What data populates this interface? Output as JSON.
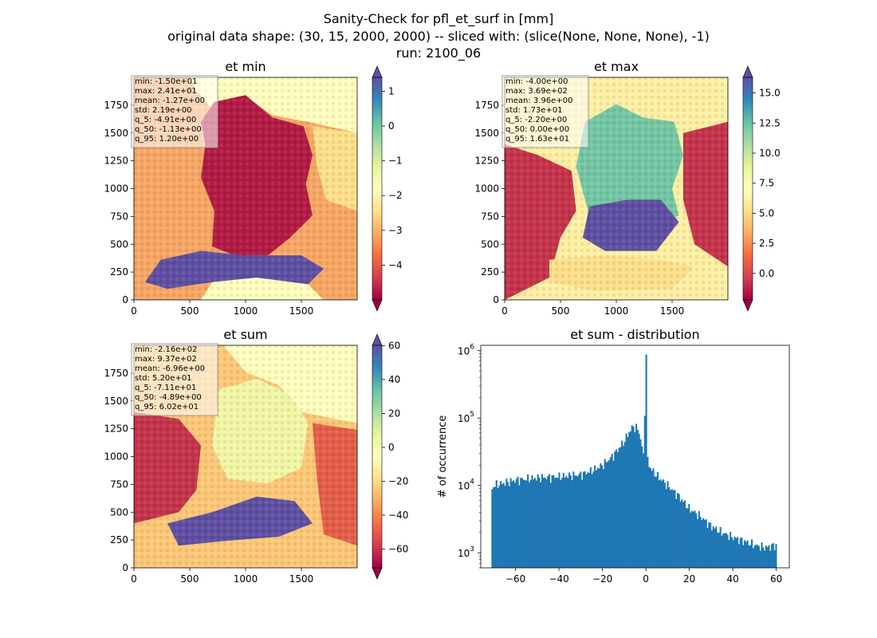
{
  "suptitle": {
    "line1": "Sanity-Check for pfl_et_surf in [mm]",
    "line2": "original data shape: (30, 15, 2000, 2000) -- sliced with: (slice(None, None, None), -1)",
    "line3": "run: 2100_06"
  },
  "colors": {
    "spectral": [
      "#9e0142",
      "#d53e4f",
      "#f46d43",
      "#fdae61",
      "#fee08b",
      "#ffffbf",
      "#e6f598",
      "#abdda4",
      "#66c2a5",
      "#3288bd",
      "#5e4fa2"
    ],
    "hist_bar": "#1f77b4"
  },
  "chart_data": [
    {
      "type": "heatmap",
      "title": "et min",
      "xlim": [
        0,
        2000
      ],
      "ylim": [
        0,
        2000
      ],
      "xticks": [
        "0",
        "500",
        "1000",
        "1500"
      ],
      "yticks": [
        "0",
        "250",
        "500",
        "750",
        "1000",
        "1250",
        "1500",
        "1750"
      ],
      "colorbar": {
        "range": [
          -5,
          1.4
        ],
        "ticks": [
          "1",
          "0",
          "−1",
          "−2",
          "−3",
          "−4"
        ],
        "tick_values": [
          1,
          0,
          -1,
          -2,
          -3,
          -4
        ],
        "extend": "both"
      },
      "stats": [
        "min: -1.50e+01",
        "max: 2.41e+01",
        "mean: -1.27e+00",
        "std: 2.19e+00",
        "q_5: -4.91e+00",
        "q_50: -1.13e+00",
        "q_95: 1.20e+00"
      ]
    },
    {
      "type": "heatmap",
      "title": "et max",
      "xlim": [
        0,
        2000
      ],
      "ylim": [
        0,
        2000
      ],
      "xticks": [
        "0",
        "500",
        "1000",
        "1500"
      ],
      "yticks": [
        "0",
        "250",
        "500",
        "750",
        "1000",
        "1250",
        "1500",
        "1750"
      ],
      "colorbar": {
        "range": [
          -2.2,
          16.3
        ],
        "ticks": [
          "15.0",
          "12.5",
          "10.0",
          "7.5",
          "5.0",
          "2.5",
          "0.0"
        ],
        "tick_values": [
          15,
          12.5,
          10,
          7.5,
          5,
          2.5,
          0
        ],
        "extend": "both"
      },
      "stats": [
        "min: -4.00e+00",
        "max: 3.69e+02",
        "mean: 3.96e+00",
        "std: 1.73e+01",
        "q_5: -2.20e+00",
        "q_50: 0.00e+00",
        "q_95: 1.63e+01"
      ]
    },
    {
      "type": "heatmap",
      "title": "et sum",
      "xlim": [
        0,
        2000
      ],
      "ylim": [
        0,
        2000
      ],
      "xticks": [
        "0",
        "500",
        "1000",
        "1500"
      ],
      "yticks": [
        "0",
        "250",
        "500",
        "750",
        "1000",
        "1250",
        "1500",
        "1750"
      ],
      "colorbar": {
        "range": [
          -71.1,
          60.2
        ],
        "ticks": [
          "60",
          "40",
          "20",
          "0",
          "−20",
          "−40",
          "−60"
        ],
        "tick_values": [
          60,
          40,
          20,
          0,
          -20,
          -40,
          -60
        ],
        "extend": "both"
      },
      "stats": [
        "min: -2.16e+02",
        "max: 9.37e+02",
        "mean: -6.96e+00",
        "std: 5.20e+01",
        "q_5: -7.11e+01",
        "q_50: -4.89e+00",
        "q_95: 6.02e+01"
      ]
    },
    {
      "type": "bar",
      "title": "et sum - distribution",
      "ylabel": "# of occurrence",
      "yscale": "log",
      "xlim": [
        -76,
        66
      ],
      "ylim": [
        600,
        1200000
      ],
      "xticks": [
        "−60",
        "−40",
        "−20",
        "0",
        "20",
        "40",
        "60"
      ],
      "xtick_values": [
        -60,
        -40,
        -20,
        0,
        20,
        40,
        60
      ],
      "ytick_values": [
        1000,
        10000,
        100000,
        1000000
      ],
      "ytick_labels": [
        {
          "base": "10",
          "exp": "3"
        },
        {
          "base": "10",
          "exp": "4"
        },
        {
          "base": "10",
          "exp": "5"
        },
        {
          "base": "10",
          "exp": "6"
        }
      ],
      "bins": {
        "start": -71.1,
        "end": 60.2,
        "count": 200
      },
      "profile": [
        [
          -71,
          8500
        ],
        [
          -70,
          10000
        ],
        [
          -60,
          12000
        ],
        [
          -50,
          13000
        ],
        [
          -40,
          13500
        ],
        [
          -30,
          14500
        ],
        [
          -25,
          16500
        ],
        [
          -20,
          20000
        ],
        [
          -15,
          28000
        ],
        [
          -10,
          45000
        ],
        [
          -8,
          60000
        ],
        [
          -6,
          75000
        ],
        [
          -4,
          70000
        ],
        [
          -3,
          60000
        ],
        [
          -2,
          40000
        ],
        [
          -1,
          25000
        ],
        [
          0,
          820000
        ],
        [
          0.7,
          25000
        ],
        [
          2,
          18000
        ],
        [
          5,
          14000
        ],
        [
          10,
          10000
        ],
        [
          15,
          7000
        ],
        [
          20,
          4500
        ],
        [
          25,
          3500
        ],
        [
          30,
          2500
        ],
        [
          35,
          2000
        ],
        [
          40,
          1700
        ],
        [
          45,
          1500
        ],
        [
          50,
          1300
        ],
        [
          55,
          1200
        ],
        [
          60,
          1300
        ]
      ]
    }
  ]
}
